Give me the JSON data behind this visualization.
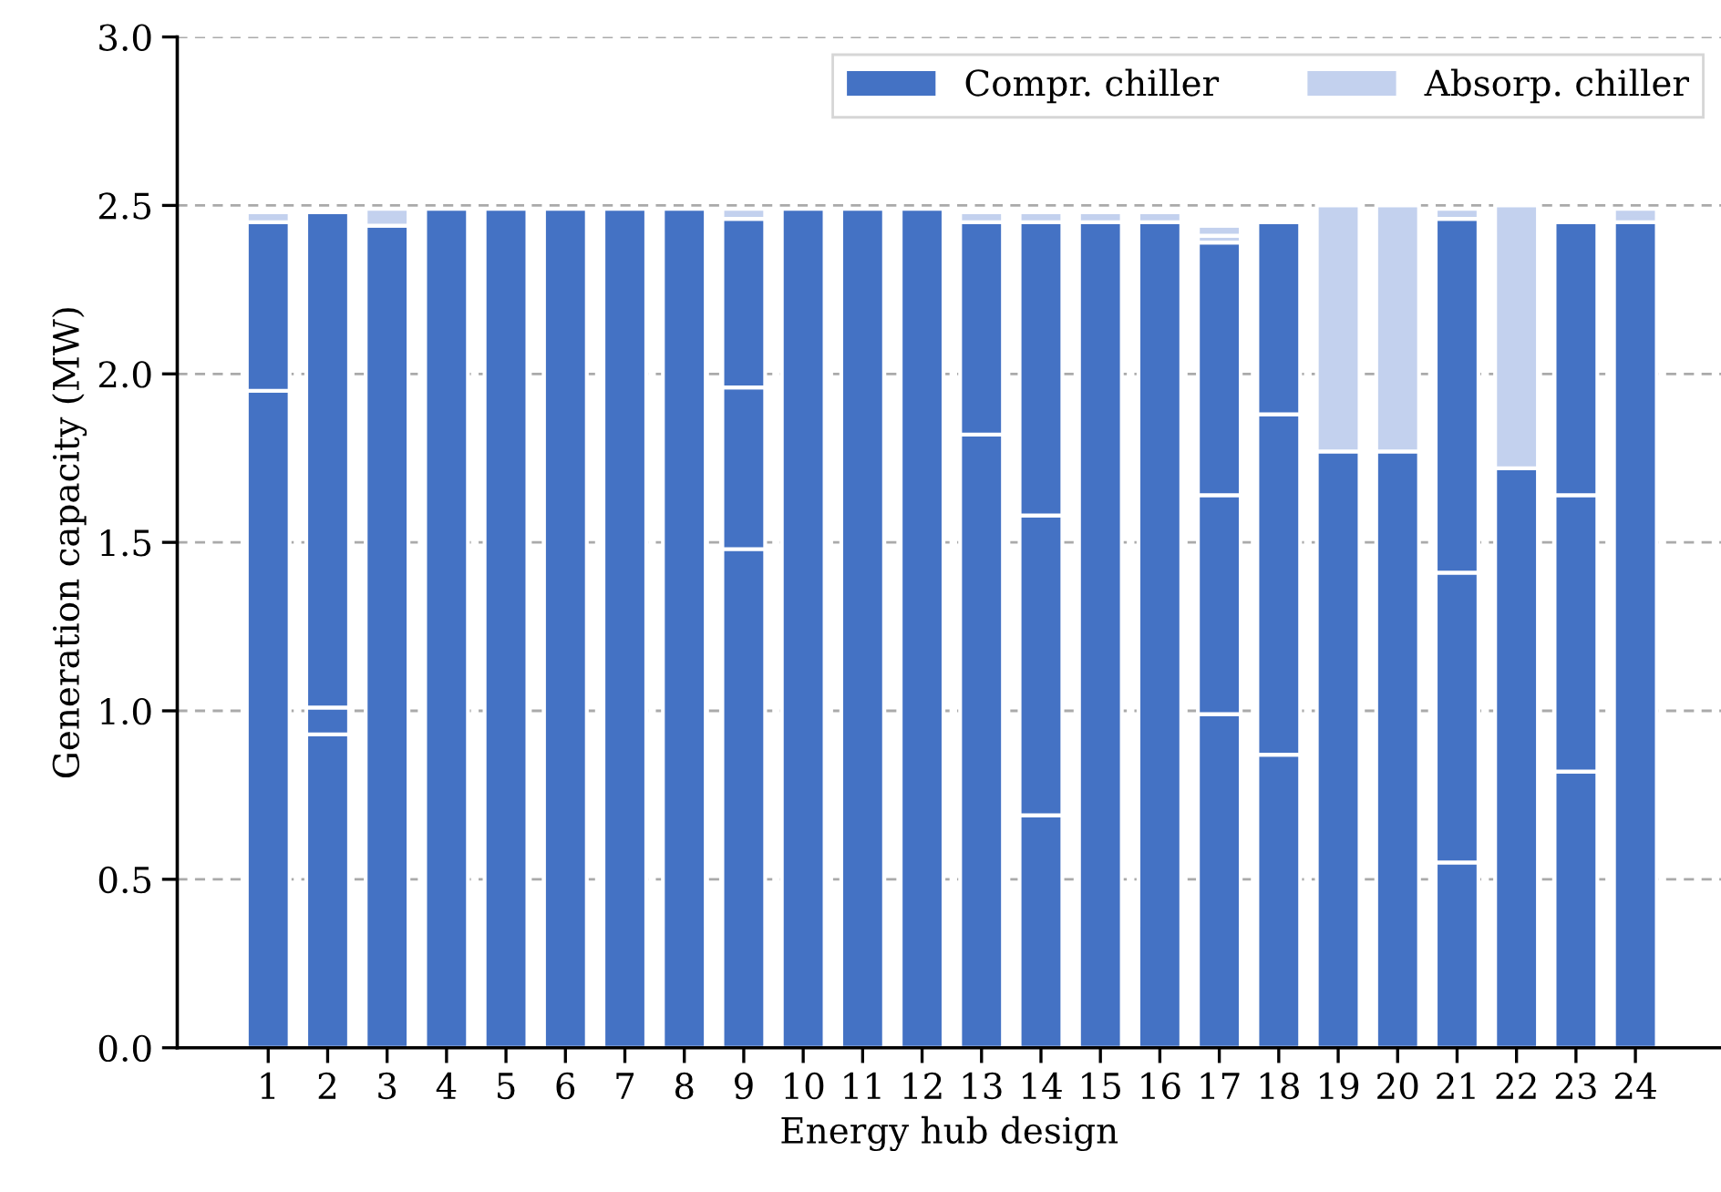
{
  "chart_data": {
    "type": "bar",
    "stacked": true,
    "xlabel": "Energy hub design",
    "ylabel": "Generation capacity (MW)",
    "categories": [
      "1",
      "2",
      "3",
      "4",
      "5",
      "6",
      "7",
      "8",
      "9",
      "10",
      "11",
      "12",
      "13",
      "14",
      "15",
      "16",
      "17",
      "18",
      "19",
      "20",
      "21",
      "22",
      "23",
      "24"
    ],
    "series": [
      {
        "name": "Compr. chiller",
        "color": "#4472c4",
        "values": [
          1.95,
          0.93,
          2.44,
          2.49,
          2.49,
          2.49,
          2.49,
          2.49,
          1.48,
          2.49,
          2.49,
          2.49,
          1.82,
          0.69,
          2.45,
          2.45,
          0.99,
          0.87,
          1.77,
          1.77,
          0.55,
          1.72,
          0.82,
          2.45
        ]
      },
      {
        "color": "#4472c4",
        "values": [
          0.5,
          0.08,
          null,
          null,
          null,
          null,
          null,
          null,
          0.48,
          null,
          null,
          null,
          0.63,
          0.89,
          null,
          null,
          0.65,
          1.01,
          null,
          null,
          0.86,
          null,
          0.82,
          null
        ]
      },
      {
        "color": "#4472c4",
        "values": [
          null,
          1.47,
          null,
          null,
          null,
          null,
          null,
          null,
          0.5,
          null,
          null,
          null,
          null,
          0.87,
          null,
          null,
          0.75,
          0.57,
          null,
          null,
          1.05,
          null,
          0.81,
          null
        ]
      },
      {
        "name": "Absorp. chiller",
        "color": "#c3d1ee",
        "values": [
          0.03,
          null,
          0.05,
          null,
          null,
          null,
          null,
          null,
          0.03,
          null,
          null,
          null,
          0.03,
          0.03,
          0.03,
          0.03,
          0.02,
          null,
          0.73,
          0.73,
          0.03,
          0.78,
          null,
          0.04
        ]
      },
      {
        "color": "#c3d1ee",
        "values": [
          null,
          null,
          null,
          null,
          null,
          null,
          null,
          null,
          null,
          null,
          null,
          null,
          null,
          null,
          null,
          null,
          0.03,
          null,
          null,
          null,
          null,
          null,
          null,
          null
        ]
      },
      {
        "color": "#c3d1ee",
        "values": [
          null,
          null,
          null,
          null,
          null,
          null,
          null,
          null,
          null,
          null,
          null,
          null,
          null,
          null,
          null,
          null,
          0.01,
          null,
          null,
          null,
          null,
          null,
          null,
          null
        ]
      }
    ],
    "ylim": [
      0,
      3.0
    ],
    "yticks": [
      {
        "value": 0,
        "label": "0.0"
      },
      0.5,
      {
        "value": 1,
        "label": "1.0"
      },
      1.5,
      {
        "value": 2,
        "label": "2.0"
      },
      2.5,
      {
        "value": 3,
        "label": "3.0"
      }
    ],
    "grid": "y",
    "legend": "top right"
  }
}
